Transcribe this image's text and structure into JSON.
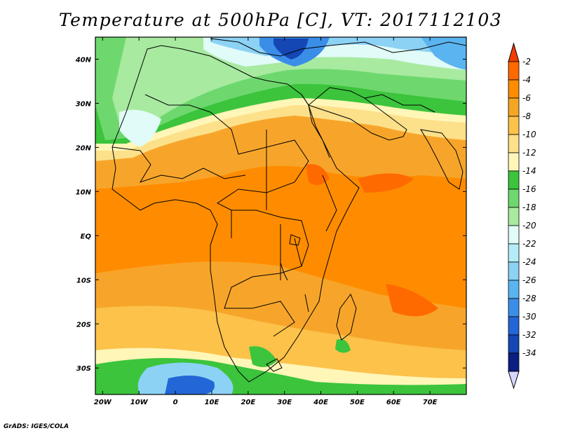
{
  "title": "Temperature at 500hPa [C], VT: 2017112103",
  "credit": "GrADS: IGES/COLA",
  "map": {
    "lon_range": [
      -22,
      80
    ],
    "lat_range": [
      -36,
      45
    ],
    "lon_ticks": [
      {
        "value": -20,
        "label": "20W"
      },
      {
        "value": -10,
        "label": "10W"
      },
      {
        "value": 0,
        "label": "0"
      },
      {
        "value": 10,
        "label": "10E"
      },
      {
        "value": 20,
        "label": "20E"
      },
      {
        "value": 30,
        "label": "30E"
      },
      {
        "value": 40,
        "label": "40E"
      },
      {
        "value": 50,
        "label": "50E"
      },
      {
        "value": 60,
        "label": "60E"
      },
      {
        "value": 70,
        "label": "70E"
      }
    ],
    "lat_ticks": [
      {
        "value": 40,
        "label": "40N"
      },
      {
        "value": 30,
        "label": "30N"
      },
      {
        "value": 20,
        "label": "20N"
      },
      {
        "value": 10,
        "label": "10N"
      },
      {
        "value": 0,
        "label": "EQ"
      },
      {
        "value": -10,
        "label": "10S"
      },
      {
        "value": -20,
        "label": "20S"
      },
      {
        "value": -30,
        "label": "30S"
      }
    ]
  },
  "colorbar": {
    "levels": [
      {
        "label": "-2",
        "color": "#ff6a00"
      },
      {
        "label": "-4",
        "color": "#ff8c00"
      },
      {
        "label": "-6",
        "color": "#f5a623"
      },
      {
        "label": "-8",
        "color": "#fcc24a"
      },
      {
        "label": "-10",
        "color": "#fde08a"
      },
      {
        "label": "-12",
        "color": "#fff6b8"
      },
      {
        "label": "-14",
        "color": "#3cc43c"
      },
      {
        "label": "-16",
        "color": "#6ed86e"
      },
      {
        "label": "-18",
        "color": "#a8eaa0"
      },
      {
        "label": "-20",
        "color": "#e0fbf8"
      },
      {
        "label": "-22",
        "color": "#b4ecf8"
      },
      {
        "label": "-24",
        "color": "#8cd2f5"
      },
      {
        "label": "-26",
        "color": "#5ab4ef"
      },
      {
        "label": "-28",
        "color": "#3b8ee8"
      },
      {
        "label": "-30",
        "color": "#2366d6"
      },
      {
        "label": "-32",
        "color": "#1446b4"
      },
      {
        "label": "-34",
        "color": "#0b1e82"
      }
    ],
    "top_color": "#f23c00",
    "bottom_color": "#d8d8ff"
  }
}
